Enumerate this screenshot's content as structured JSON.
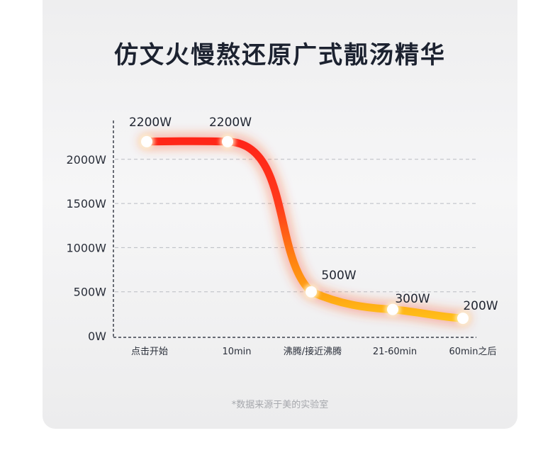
{
  "title": "仿文火慢熬还原广式靓汤精华",
  "note": "*数据来源于美的实验室",
  "chart_data": {
    "type": "line",
    "categories": [
      "点击开始",
      "10min",
      "沸腾/接近沸腾",
      "21-60min",
      "60min之后"
    ],
    "y_ticks": [
      "0W",
      "500W",
      "1000W",
      "1500W",
      "2000W"
    ],
    "ylim": [
      0,
      2200
    ],
    "grid": true,
    "points": [
      {
        "label": "2200W",
        "value": 2200
      },
      {
        "label": "2200W",
        "value": 2200
      },
      {
        "label": "500W",
        "value": 500
      },
      {
        "label": "300W",
        "value": 300
      },
      {
        "label": "200W",
        "value": 200
      }
    ],
    "colors": {
      "high": "#ff2a1f",
      "mid": "#ff7a10",
      "low": "#ffc21a"
    }
  }
}
